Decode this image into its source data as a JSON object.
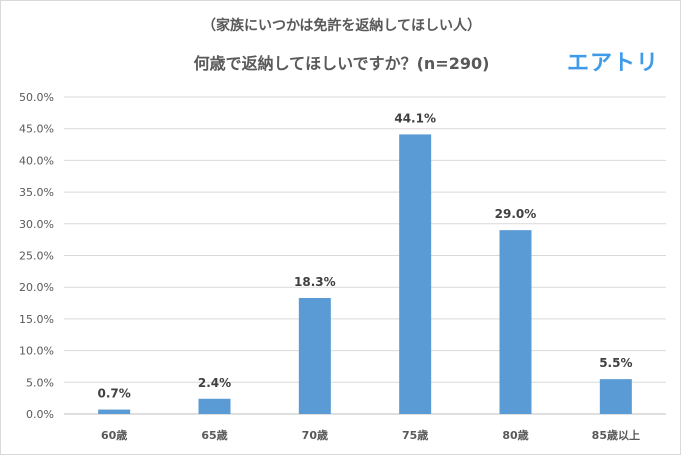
{
  "header": {
    "subtitle": "（家族にいつかは免許を返納してほしい人）",
    "logo": "エアトリ"
  },
  "colors": {
    "bar": "#5b9bd5",
    "grid": "#d9d9d9",
    "text": "#595959",
    "logo": "#3d9be9"
  },
  "chart_data": {
    "type": "bar",
    "title": "何歳で返納してほしいですか？(n=290)",
    "categories": [
      "60歳",
      "65歳",
      "70歳",
      "75歳",
      "80歳",
      "85歳以上"
    ],
    "values": [
      0.7,
      2.4,
      18.3,
      44.1,
      29.0,
      5.5
    ],
    "data_labels": [
      "0.7%",
      "2.4%",
      "18.3%",
      "44.1%",
      "29.0%",
      "5.5%"
    ],
    "yticks": [
      "0.0%",
      "5.0%",
      "10.0%",
      "15.0%",
      "20.0%",
      "25.0%",
      "30.0%",
      "35.0%",
      "40.0%",
      "45.0%",
      "50.0%"
    ],
    "ylim": [
      0,
      50
    ],
    "grid": true,
    "legend": "none"
  }
}
